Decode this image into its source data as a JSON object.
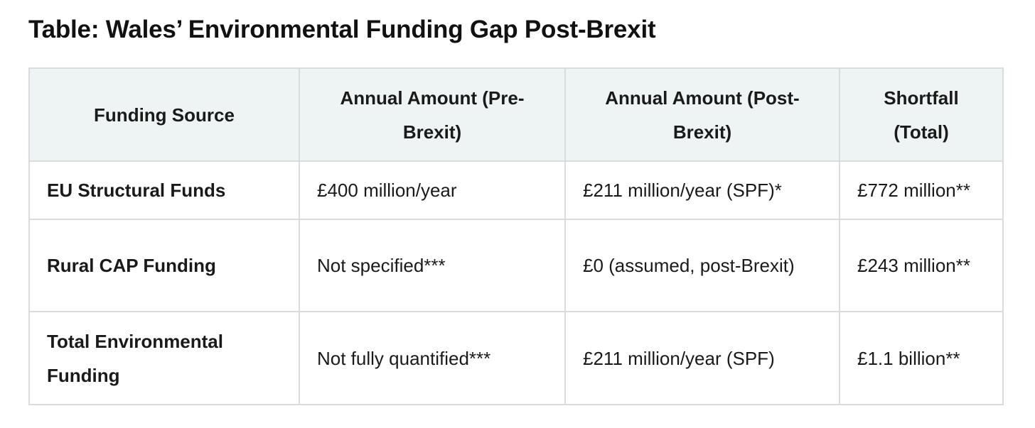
{
  "page": {
    "title": "Table: Wales’ Environmental Funding Gap Post-Brexit"
  },
  "table": {
    "headers": [
      "Funding Source",
      "Annual Amount (Pre-Brexit)",
      "Annual Amount (Post-Brexit)",
      "Shortfall (Total)"
    ],
    "rows": [
      {
        "source": "EU Structural Funds",
        "pre_brexit": "£400 million/year",
        "post_brexit": "£211 million/year (SPF)*",
        "shortfall": "£772 million**"
      },
      {
        "source": "Rural CAP Funding",
        "pre_brexit": "Not specified***",
        "post_brexit": "£0 (assumed, post-Brexit)",
        "shortfall": "£243 million**"
      },
      {
        "source": "Total Environmental Funding",
        "pre_brexit": "Not fully quantified***",
        "post_brexit": "£211 million/year (SPF)",
        "shortfall": "£1.1 billion**"
      }
    ]
  }
}
